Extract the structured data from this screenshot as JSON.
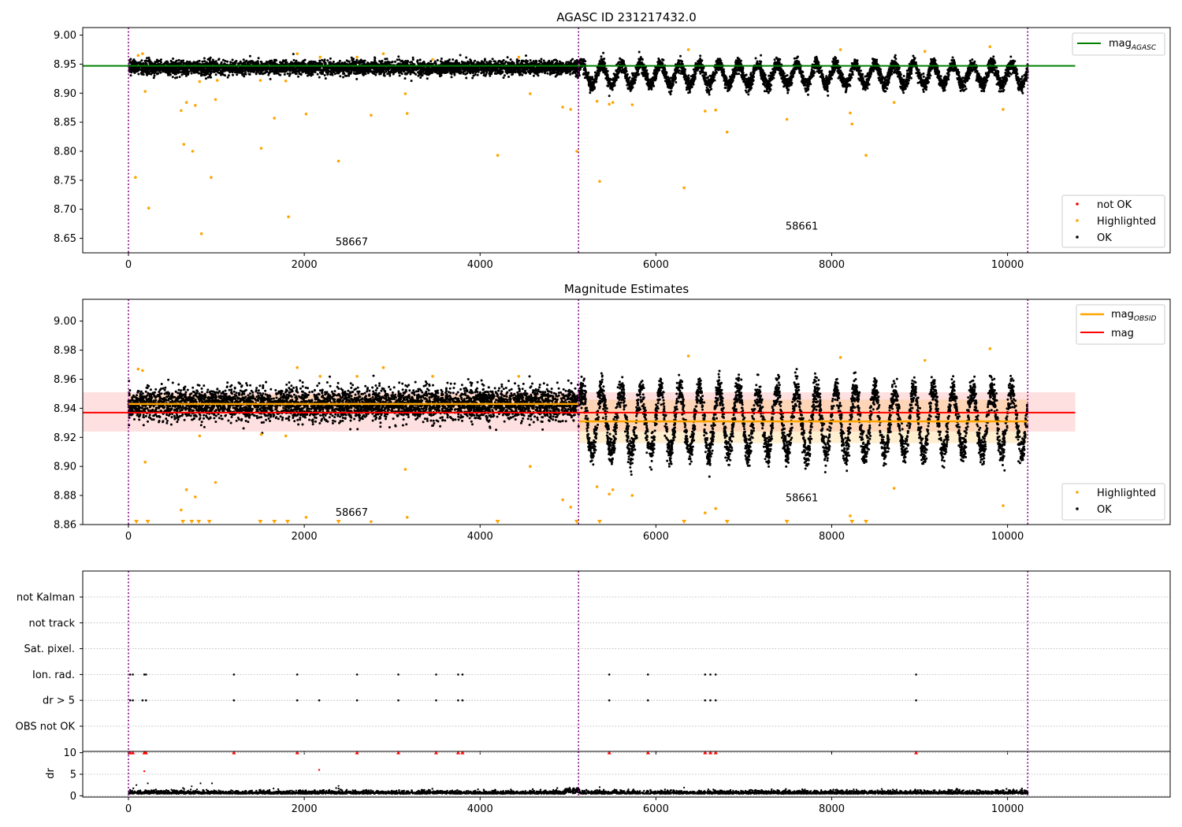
{
  "chart_data": [
    {
      "type": "scatter",
      "title": "AGASC ID 231217432.0",
      "xlim": [
        -520,
        11850
      ],
      "ylim": [
        8.625,
        9.013
      ],
      "x_ticks": [
        0,
        2000,
        4000,
        6000,
        8000,
        10000
      ],
      "x_tick_labels": [
        "0",
        "2000",
        "4000",
        "6000",
        "8000",
        "10000"
      ],
      "y_ticks": [
        8.65,
        8.7,
        8.75,
        8.8,
        8.85,
        8.9,
        8.95,
        9.0
      ],
      "y_tick_labels": [
        "8.65",
        "8.70",
        "8.75",
        "8.80",
        "8.85",
        "8.90",
        "8.95",
        "9.00"
      ],
      "obsid_boundaries": [
        0,
        5120,
        10230
      ],
      "obsid_labels": [
        {
          "text": "58667",
          "x": 2540,
          "y": 8.638
        },
        {
          "text": "58661",
          "x": 7660,
          "y": 8.665
        }
      ],
      "reference_line": {
        "name": "mag_AGASC",
        "value": 8.947,
        "x_range": [
          -520,
          10770
        ],
        "color": "#008000"
      },
      "segments": [
        {
          "x_range": [
            0,
            5120
          ],
          "mean": 8.944,
          "noise": 0.006,
          "amplitude": 0,
          "period": 1
        },
        {
          "x_range": [
            5120,
            10230
          ],
          "mean": 8.932,
          "noise": 0.006,
          "amplitude": 0.018,
          "period": 222
        }
      ],
      "series": [
        {
          "name": "OK",
          "color": "#000000"
        },
        {
          "name": "Highlighted",
          "color": "#ffa500"
        },
        {
          "name": "not OK",
          "color": "#ff0000"
        }
      ],
      "highlighted_points": [
        [
          80,
          8.755
        ],
        [
          110,
          8.965
        ],
        [
          160,
          8.968
        ],
        [
          190,
          8.903
        ],
        [
          230,
          8.702
        ],
        [
          600,
          8.87
        ],
        [
          630,
          8.812
        ],
        [
          660,
          8.884
        ],
        [
          730,
          8.8
        ],
        [
          760,
          8.879
        ],
        [
          810,
          8.92
        ],
        [
          830,
          8.658
        ],
        [
          940,
          8.755
        ],
        [
          990,
          8.889
        ],
        [
          1010,
          8.922
        ],
        [
          1500,
          8.922
        ],
        [
          1510,
          8.805
        ],
        [
          1660,
          8.857
        ],
        [
          1790,
          8.921
        ],
        [
          1820,
          8.687
        ],
        [
          1920,
          8.968
        ],
        [
          2020,
          8.864
        ],
        [
          2180,
          8.962
        ],
        [
          2390,
          8.783
        ],
        [
          2600,
          8.962
        ],
        [
          2760,
          8.862
        ],
        [
          2900,
          8.968
        ],
        [
          3150,
          8.899
        ],
        [
          3170,
          8.865
        ],
        [
          3460,
          8.958
        ],
        [
          4200,
          8.793
        ],
        [
          4440,
          8.962
        ],
        [
          4570,
          8.899
        ],
        [
          4940,
          8.876
        ],
        [
          5030,
          8.872
        ],
        [
          5100,
          8.8
        ],
        [
          5330,
          8.886
        ],
        [
          5360,
          8.748
        ],
        [
          5470,
          8.881
        ],
        [
          5510,
          8.884
        ],
        [
          5730,
          8.88
        ],
        [
          6320,
          8.737
        ],
        [
          6370,
          8.975
        ],
        [
          6560,
          8.869
        ],
        [
          6680,
          8.871
        ],
        [
          6810,
          8.833
        ],
        [
          7490,
          8.855
        ],
        [
          8100,
          8.975
        ],
        [
          8210,
          8.866
        ],
        [
          8230,
          8.847
        ],
        [
          8390,
          8.793
        ],
        [
          8710,
          8.884
        ],
        [
          9060,
          8.972
        ],
        [
          9800,
          8.98
        ],
        [
          9950,
          8.872
        ]
      ],
      "legend": {
        "placement": "upper-right and lower-right",
        "entries": [
          "mag_AGASC",
          "not OK",
          "Highlighted",
          "OK"
        ]
      }
    },
    {
      "type": "scatter",
      "title": "Magnitude Estimates",
      "xlim": [
        -520,
        11850
      ],
      "ylim": [
        8.86,
        9.015
      ],
      "x_ticks": [
        0,
        2000,
        4000,
        6000,
        8000,
        10000
      ],
      "x_tick_labels": [
        "0",
        "2000",
        "4000",
        "6000",
        "8000",
        "10000"
      ],
      "y_ticks": [
        8.86,
        8.88,
        8.9,
        8.92,
        8.94,
        8.96,
        8.98,
        9.0
      ],
      "y_tick_labels": [
        "8.86",
        "8.88",
        "8.90",
        "8.92",
        "8.94",
        "8.96",
        "8.98",
        "9.00"
      ],
      "obsid_boundaries": [
        0,
        5120,
        10230
      ],
      "obsid_labels": [
        {
          "text": "58667",
          "x": 2540,
          "y": 8.866
        },
        {
          "text": "58661",
          "x": 7660,
          "y": 8.876
        }
      ],
      "mag_line": {
        "name": "mag",
        "value": 8.937,
        "band": [
          8.924,
          8.951
        ],
        "x_range": [
          -520,
          10770
        ],
        "color": "#ff0000"
      },
      "obsid_mag": [
        {
          "x_range": [
            0,
            5120
          ],
          "value": 8.943,
          "band": [
            8.937,
            8.949
          ]
        },
        {
          "x_range": [
            5120,
            10230
          ],
          "value": 8.931,
          "band": [
            8.916,
            8.946
          ]
        }
      ],
      "segments": [
        {
          "x_range": [
            0,
            5120
          ],
          "mean": 8.943,
          "noise": 0.0055,
          "amplitude": 0,
          "period": 1
        },
        {
          "x_range": [
            5120,
            10230
          ],
          "mean": 8.931,
          "noise": 0.005,
          "amplitude": 0.022,
          "period": 222
        }
      ],
      "highlighted_points": [
        [
          110,
          8.967
        ],
        [
          160,
          8.966
        ],
        [
          190,
          8.903
        ],
        [
          600,
          8.87
        ],
        [
          660,
          8.884
        ],
        [
          760,
          8.879
        ],
        [
          810,
          8.921
        ],
        [
          990,
          8.889
        ],
        [
          1510,
          8.922
        ],
        [
          1790,
          8.921
        ],
        [
          1920,
          8.968
        ],
        [
          2020,
          8.865
        ],
        [
          2180,
          8.962
        ],
        [
          2600,
          8.962
        ],
        [
          2760,
          8.862
        ],
        [
          2900,
          8.968
        ],
        [
          3150,
          8.898
        ],
        [
          3170,
          8.865
        ],
        [
          3460,
          8.962
        ],
        [
          4440,
          8.962
        ],
        [
          4570,
          8.9
        ],
        [
          4940,
          8.877
        ],
        [
          5030,
          8.872
        ],
        [
          5330,
          8.886
        ],
        [
          5470,
          8.881
        ],
        [
          5510,
          8.884
        ],
        [
          5730,
          8.88
        ],
        [
          6370,
          8.976
        ],
        [
          6560,
          8.868
        ],
        [
          6680,
          8.871
        ],
        [
          8100,
          8.975
        ],
        [
          8210,
          8.866
        ],
        [
          8710,
          8.885
        ],
        [
          9060,
          8.973
        ],
        [
          9800,
          8.981
        ],
        [
          9950,
          8.873
        ]
      ],
      "out_of_range_markers_x": [
        90,
        220,
        620,
        720,
        800,
        920,
        1500,
        1660,
        1810,
        2390,
        4200,
        5100,
        5360,
        6320,
        6810,
        7490,
        8230,
        8390
      ],
      "legend": {
        "placement": "upper-right and lower-right",
        "entries": [
          "mag_OBSID",
          "mag",
          "Highlighted",
          "OK"
        ]
      }
    },
    {
      "type": "scatter",
      "title": "",
      "xlim": [
        -520,
        11850
      ],
      "flag_rows": [
        "not Kalman",
        "not track",
        "Sat. pixel.",
        "Ion. rad.",
        "dr > 5",
        "OBS not OK"
      ],
      "flag_events": {
        "Ion. rad.": [
          20,
          50,
          180,
          200,
          1200,
          1920,
          2600,
          3070,
          3500,
          3750,
          3800,
          5470,
          5910,
          6560,
          6620,
          6680,
          8960
        ],
        "dr > 5": [
          20,
          50,
          160,
          200,
          1200,
          1920,
          2170,
          2600,
          3070,
          3500,
          3750,
          3800,
          5470,
          5910,
          6560,
          6620,
          6680,
          8960
        ]
      },
      "obsid_boundaries": [
        0,
        5120,
        10230
      ]
    },
    {
      "type": "scatter",
      "title": "",
      "ylabel": "dr",
      "xlim": [
        -520,
        11850
      ],
      "ylim": [
        -0.3,
        10.3
      ],
      "x_ticks": [
        0,
        2000,
        4000,
        6000,
        8000,
        10000
      ],
      "x_tick_labels": [
        "0",
        "2000",
        "4000",
        "6000",
        "8000",
        "10000"
      ],
      "y_ticks": [
        0,
        5,
        10
      ],
      "y_tick_labels": [
        "0",
        "5",
        "10"
      ],
      "baseline_dr": 0.45,
      "capped_markers_x": [
        20,
        50,
        180,
        200,
        1200,
        1920,
        2600,
        3070,
        3500,
        3750,
        3800,
        5470,
        5910,
        6560,
        6620,
        6680,
        8960
      ],
      "large_dr_points": [
        [
          180,
          5.7
        ],
        [
          2170,
          6.0
        ]
      ],
      "outlier_points": [
        [
          90,
          2.5
        ],
        [
          220,
          2.9
        ],
        [
          620,
          1.8
        ],
        [
          720,
          2.2
        ],
        [
          780,
          1.5
        ],
        [
          820,
          2.9
        ],
        [
          950,
          2.9
        ],
        [
          1500,
          1.4
        ],
        [
          1650,
          1.7
        ],
        [
          2390,
          2.3
        ],
        [
          5360,
          2.0
        ],
        [
          6320,
          1.9
        ],
        [
          8250,
          1.5
        ]
      ],
      "obsid_boundaries": [
        0,
        5120,
        10230
      ]
    }
  ]
}
